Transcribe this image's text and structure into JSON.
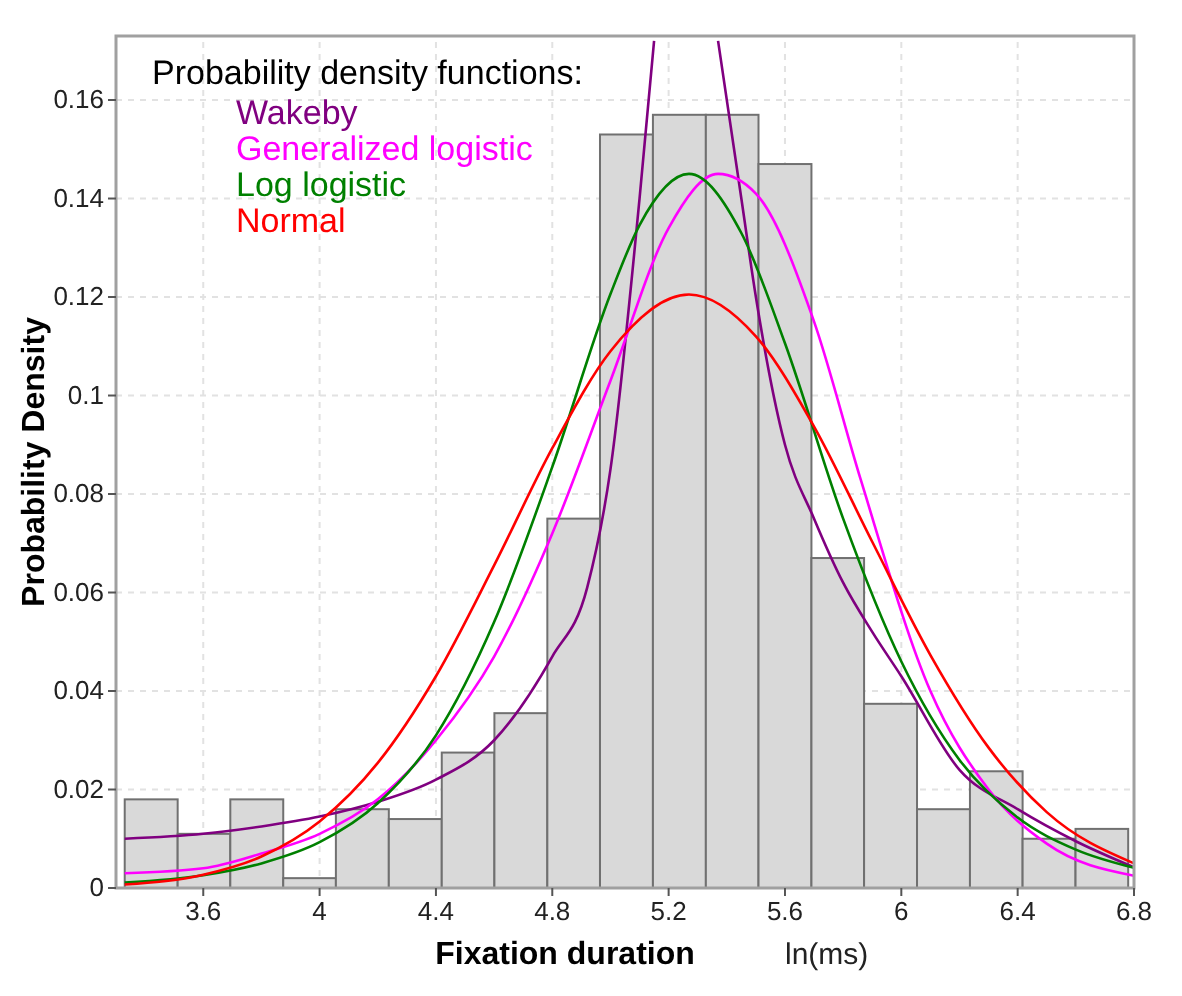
{
  "chart_data": {
    "type": "histogram",
    "xlabel": "Fixation duration",
    "ylabel": "Probability Density",
    "legend_title": "Probability density functions:",
    "annotations": [
      "ln(ms)"
    ],
    "bins": [
      3.33,
      3.512,
      3.693,
      3.875,
      4.056,
      4.238,
      4.42,
      4.601,
      4.783,
      4.964,
      5.146,
      5.328,
      5.509,
      5.691,
      5.872,
      6.054,
      6.236,
      6.417,
      6.599,
      6.78
    ],
    "values": [
      0.018,
      0.011,
      0.018,
      0.002,
      0.016,
      0.014,
      0.0275,
      0.0355,
      0.075,
      0.153,
      0.157,
      0.157,
      0.147,
      0.067,
      0.0374,
      0.016,
      0.0237,
      0.01,
      0.012
    ],
    "color": "#d9d9d9",
    "xlim": [
      3.3,
      6.8
    ],
    "ylim": [
      0,
      0.173
    ],
    "xticks": [
      3.6,
      4,
      4.4,
      4.8,
      5.2,
      5.6,
      6,
      6.4,
      6.8
    ],
    "yticks": [
      0,
      0.02,
      0.04,
      0.06,
      0.08,
      0.1,
      0.12,
      0.14,
      0.16
    ],
    "grid": true,
    "legend": "top left",
    "series": [
      {
        "name": "Wakeby",
        "type": "line",
        "color": "#800080",
        "x": [
          3.33,
          3.6,
          3.8,
          4.0,
          4.2,
          4.4,
          4.6,
          4.8,
          4.92,
          5.0,
          5.1,
          5.15,
          5.26,
          5.37,
          5.45,
          5.5,
          5.6,
          5.7,
          5.8,
          5.9,
          6.0,
          6.2,
          6.4,
          6.6,
          6.8
        ],
        "values": [
          0.01,
          0.011,
          0.0125,
          0.0145,
          0.0175,
          0.022,
          0.03,
          0.047,
          0.061,
          0.085,
          0.14,
          0.172,
          null,
          0.172,
          0.14,
          0.12,
          0.09,
          0.075,
          0.062,
          0.052,
          0.043,
          0.024,
          0.016,
          0.0095,
          0.0042
        ]
      },
      {
        "name": "Generalized logistic",
        "type": "line",
        "color": "#ff00ff",
        "x": [
          3.33,
          3.6,
          3.8,
          4.0,
          4.2,
          4.4,
          4.6,
          4.8,
          5.0,
          5.2,
          5.37,
          5.5,
          5.7,
          5.86,
          6.1,
          6.3,
          6.5,
          6.8
        ],
        "values": [
          0.003,
          0.004,
          0.007,
          0.011,
          0.018,
          0.03,
          0.047,
          0.072,
          0.103,
          0.134,
          0.145,
          0.141,
          0.115,
          0.083,
          0.04,
          0.02,
          0.009,
          0.0025
        ]
      },
      {
        "name": "Log logistic",
        "type": "line",
        "color": "#008000",
        "x": [
          3.33,
          3.6,
          3.8,
          4.0,
          4.2,
          4.4,
          4.6,
          4.8,
          5.0,
          5.1,
          5.27,
          5.45,
          5.6,
          5.8,
          6.0,
          6.2,
          6.4,
          6.6,
          6.8
        ],
        "values": [
          0.0011,
          0.0026,
          0.005,
          0.0093,
          0.0172,
          0.031,
          0.054,
          0.0855,
          0.1206,
          0.1346,
          0.145,
          0.133,
          0.1106,
          0.075,
          0.046,
          0.026,
          0.0143,
          0.0078,
          0.0041
        ]
      },
      {
        "name": "Normal",
        "type": "line",
        "color": "#ff0000",
        "x": [
          3.33,
          3.6,
          3.8,
          4.0,
          4.2,
          4.4,
          4.6,
          4.8,
          5.0,
          5.27,
          5.5,
          5.7,
          5.9,
          6.1,
          6.3,
          6.5,
          6.8
        ],
        "values": [
          0.0007,
          0.0027,
          0.0064,
          0.0135,
          0.0254,
          0.043,
          0.0655,
          0.0893,
          0.109,
          0.1205,
          0.112,
          0.0937,
          0.0703,
          0.0473,
          0.0285,
          0.0154,
          0.005
        ]
      }
    ]
  }
}
